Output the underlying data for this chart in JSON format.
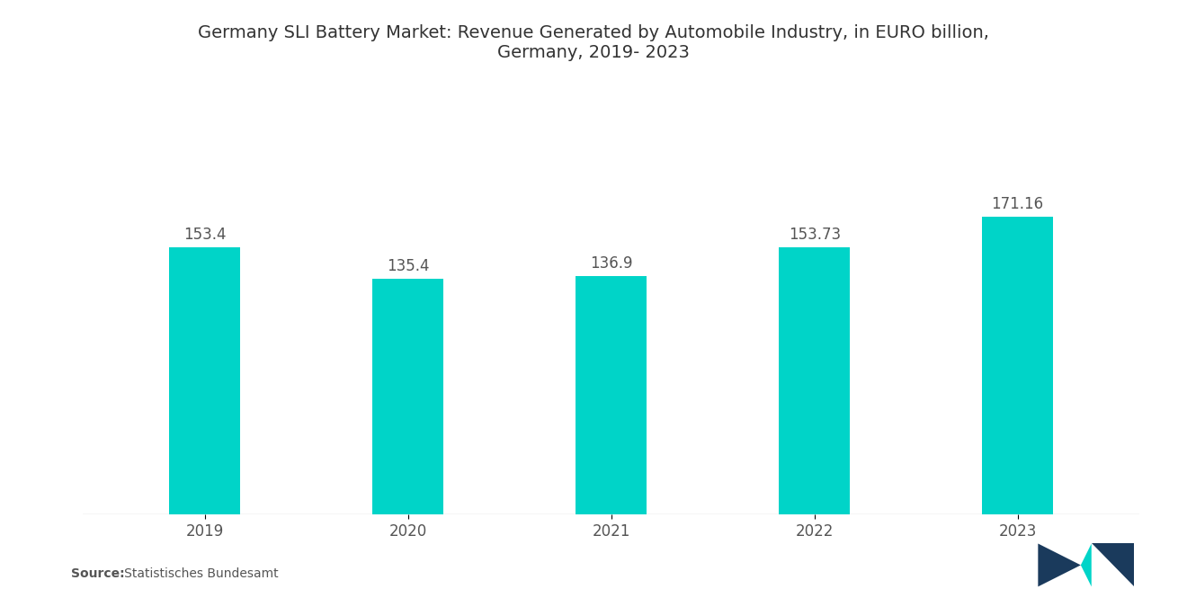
{
  "title_line1": "Germany SLI Battery Market: Revenue Generated by Automobile Industry, in EURO billion,",
  "title_line2": "Germany, 2019- 2023",
  "categories": [
    "2019",
    "2020",
    "2021",
    "2022",
    "2023"
  ],
  "values": [
    153.4,
    135.4,
    136.9,
    153.73,
    171.16
  ],
  "value_labels": [
    "153.4",
    "135.4",
    "136.9",
    "153.73",
    "171.16"
  ],
  "bar_color": "#00D4C8",
  "background_color": "#ffffff",
  "title_fontsize": 14,
  "label_fontsize": 12,
  "tick_fontsize": 12,
  "ylim": [
    0,
    220
  ],
  "source_bold": "Source:",
  "source_rest": "   Statistisches Bundesamt",
  "bar_width": 0.35,
  "text_color": "#555555",
  "title_color": "#333333"
}
